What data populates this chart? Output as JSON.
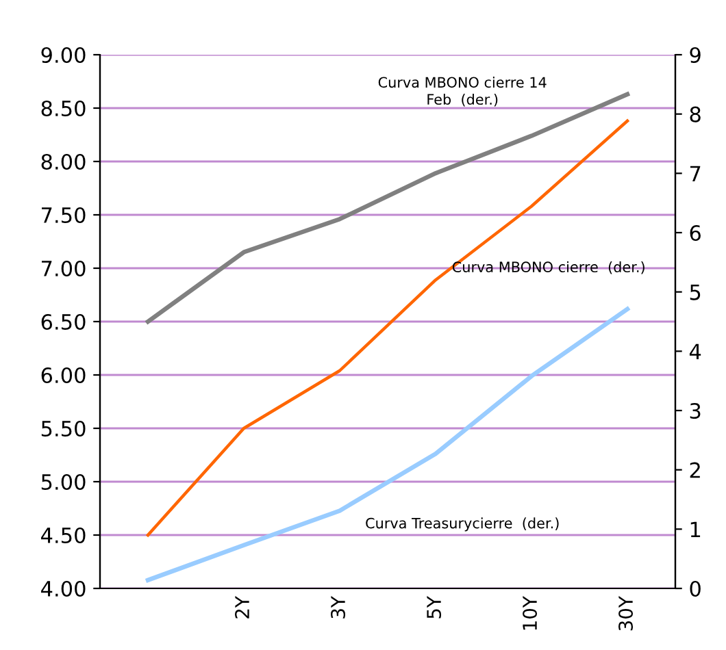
{
  "chart_data": {
    "type": "line",
    "categories": [
      null,
      "2Y",
      "3Y",
      "5Y",
      "10Y",
      "30Y"
    ],
    "series": [
      {
        "name": "Curva MBONO cierre 14\nFeb  (der.)",
        "color": "#808080",
        "values": [
          6.5,
          7.15,
          7.46,
          7.89,
          8.24,
          8.63
        ]
      },
      {
        "name": "Curva MBONO cierre  (der.)",
        "color": "#ff6600",
        "values": [
          4.5,
          5.5,
          6.04,
          6.89,
          7.58,
          8.38
        ]
      },
      {
        "name": "Curva Treasurycierre  (der.)",
        "color": "#99ccff",
        "axis": "y2",
        "values": [
          0.14,
          0.73,
          1.31,
          2.27,
          3.58,
          4.71
        ]
      }
    ],
    "ylim": [
      4.0,
      9.0
    ],
    "yticks": [
      {
        "value": 4.0,
        "label": "4.00"
      },
      {
        "value": 4.5,
        "label": "4.50"
      },
      {
        "value": 5.0,
        "label": "5.00"
      },
      {
        "value": 5.5,
        "label": "5.50"
      },
      {
        "value": 6.0,
        "label": "6.00"
      },
      {
        "value": 6.5,
        "label": "6.50"
      },
      {
        "value": 7.0,
        "label": "7.00"
      },
      {
        "value": 7.5,
        "label": "7.50"
      },
      {
        "value": 8.0,
        "label": "8.00"
      },
      {
        "value": 8.5,
        "label": "8.50"
      },
      {
        "value": 9.0,
        "label": "9.00"
      }
    ],
    "y2lim": [
      0,
      9
    ],
    "y2ticks": [
      0,
      1,
      2,
      3,
      4,
      5,
      6,
      7,
      8,
      9
    ],
    "grid": "y",
    "legend": false,
    "marker": "none",
    "line_style": "solid"
  }
}
